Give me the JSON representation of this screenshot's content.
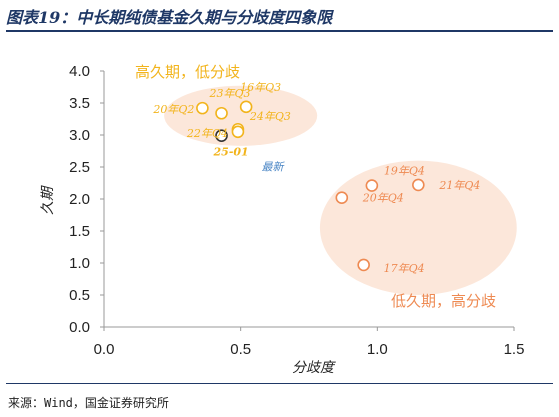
{
  "title": "图表19：中长期纯债基金久期与分歧度四象限",
  "source": "来源：Wind，国金证券研究所",
  "colors": {
    "high_duration": "#f2b41c",
    "low_duration": "#ee8a52",
    "latest_point": "#333333",
    "latest_label": "#4a86c5",
    "high_ellipse": "#fbe3d3",
    "low_ellipse": "#fbe3d3",
    "axis": "#999999",
    "frame": "#1f3866"
  },
  "chart_data": {
    "type": "scatter",
    "xlabel": "分歧度",
    "ylabel": "久期",
    "xlim": [
      0,
      1.5
    ],
    "ylim": [
      0,
      4
    ],
    "x_ticks": [
      "0.0",
      "0.5",
      "1.0",
      "1.5"
    ],
    "y_ticks": [
      "0.0",
      "0.5",
      "1.0",
      "1.5",
      "2.0",
      "2.5",
      "3.0",
      "3.5",
      "4.0"
    ],
    "quadrants": [
      {
        "label": "高久期，低分歧",
        "group": "high",
        "center": [
          0.5,
          3.3
        ],
        "radii": [
          0.28,
          0.47
        ]
      },
      {
        "label": "低久期，高分歧",
        "group": "low",
        "center": [
          1.15,
          1.55
        ],
        "radii": [
          0.36,
          1.05
        ]
      }
    ],
    "points": [
      {
        "label": "20年Q2",
        "x": 0.36,
        "y": 3.42,
        "group": "high"
      },
      {
        "label": "23年Q3",
        "x": 0.43,
        "y": 3.34,
        "group": "high"
      },
      {
        "label": "16年Q3",
        "x": 0.52,
        "y": 3.44,
        "group": "high"
      },
      {
        "label": "24年Q3",
        "x": 0.49,
        "y": 3.09,
        "group": "high"
      },
      {
        "label": "22年Q4",
        "x": 0.49,
        "y": 3.05,
        "group": "high"
      },
      {
        "label": "25-01",
        "x": 0.43,
        "y": 2.99,
        "group": "latest",
        "note": "最新"
      },
      {
        "label": "19年Q4",
        "x": 0.98,
        "y": 2.21,
        "group": "low"
      },
      {
        "label": "21年Q4",
        "x": 1.15,
        "y": 2.22,
        "group": "low"
      },
      {
        "label": "20年Q4",
        "x": 0.87,
        "y": 2.02,
        "group": "low"
      },
      {
        "label": "17年Q4",
        "x": 0.95,
        "y": 0.97,
        "group": "low"
      }
    ]
  }
}
